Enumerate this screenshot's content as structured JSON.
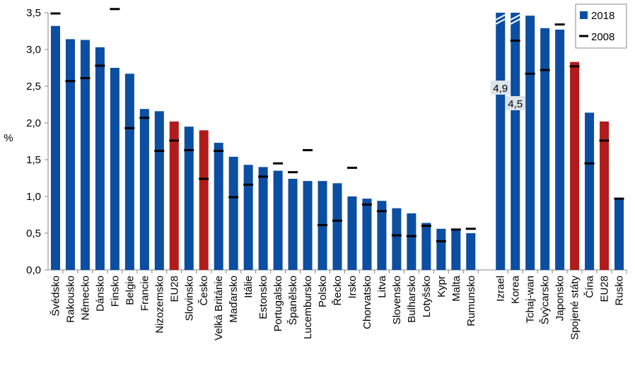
{
  "chart_data": {
    "type": "bar",
    "y_label": "%",
    "categories": [
      "Švédsko",
      "Rakousko",
      "Německo",
      "Dánsko",
      "Finsko",
      "Belgie",
      "Francie",
      "Nizozemsko",
      "EU28",
      "Slovinsko",
      "Česko",
      "Velká Británie",
      "Maďarsko",
      "Itálie",
      "Estonsko",
      "Portugalsko",
      "Španělsko",
      "Lucembursko",
      "Polsko",
      "Řecko",
      "Irsko",
      "Chorvatsko",
      "Litva",
      "Slovensko",
      "Bulharsko",
      "Lotyšsko",
      "Kypr",
      "Malta",
      "Rumunsko",
      null,
      "Izrael",
      "Korea",
      "Tchaj-wan",
      "Švýcarsko",
      "Japonsko",
      "Spojené státy",
      "Čína",
      "EU28",
      "Rusko"
    ],
    "series": [
      {
        "name": "2018",
        "color": "#0b4ea2",
        "colors": [
          "#0b4ea2",
          "#0b4ea2",
          "#0b4ea2",
          "#0b4ea2",
          "#0b4ea2",
          "#0b4ea2",
          "#0b4ea2",
          "#0b4ea2",
          "#b01c1c",
          "#0b4ea2",
          "#b01c1c",
          "#0b4ea2",
          "#0b4ea2",
          "#0b4ea2",
          "#0b4ea2",
          "#0b4ea2",
          "#0b4ea2",
          "#0b4ea2",
          "#0b4ea2",
          "#0b4ea2",
          "#0b4ea2",
          "#0b4ea2",
          "#0b4ea2",
          "#0b4ea2",
          "#0b4ea2",
          "#0b4ea2",
          "#0b4ea2",
          "#0b4ea2",
          "#0b4ea2",
          null,
          "#0b4ea2",
          "#0b4ea2",
          "#0b4ea2",
          "#0b4ea2",
          "#0b4ea2",
          "#b01c1c",
          "#0b4ea2",
          "#b01c1c",
          "#0b4ea2"
        ],
        "values": [
          3.32,
          3.14,
          3.13,
          3.03,
          2.75,
          2.67,
          2.19,
          2.16,
          2.02,
          1.95,
          1.9,
          1.73,
          1.54,
          1.43,
          1.4,
          1.35,
          1.24,
          1.21,
          1.21,
          1.18,
          1.0,
          0.97,
          0.94,
          0.84,
          0.77,
          0.64,
          0.56,
          0.55,
          0.5,
          null,
          4.9,
          4.5,
          3.46,
          3.29,
          3.27,
          2.83,
          2.14,
          2.02,
          0.98
        ],
        "value_labels": [
          null,
          null,
          null,
          null,
          null,
          null,
          null,
          null,
          null,
          null,
          null,
          null,
          null,
          null,
          null,
          null,
          null,
          null,
          null,
          null,
          null,
          null,
          null,
          null,
          null,
          null,
          null,
          null,
          null,
          null,
          "4,9",
          "4,5",
          null,
          null,
          null,
          null,
          null,
          null,
          null
        ]
      },
      {
        "name": "2008",
        "color": "#000000",
        "values": [
          3.49,
          2.57,
          2.61,
          2.78,
          3.55,
          1.93,
          2.07,
          1.62,
          1.76,
          1.63,
          1.24,
          1.62,
          0.99,
          1.16,
          1.27,
          1.45,
          1.33,
          1.63,
          0.61,
          0.67,
          1.39,
          0.89,
          0.8,
          0.47,
          0.46,
          0.6,
          0.39,
          0.55,
          0.56,
          null,
          null,
          3.12,
          2.67,
          2.72,
          3.34,
          2.77,
          1.45,
          1.76,
          0.97
        ]
      }
    ],
    "ylim": [
      0,
      3.5
    ],
    "yticks": [
      {
        "value": 0,
        "label": "0,0"
      },
      {
        "value": 0.5,
        "label": "0,5"
      },
      {
        "value": 1,
        "label": "1,0"
      },
      {
        "value": 1.5,
        "label": "1,5"
      },
      {
        "value": 2,
        "label": "2,0"
      },
      {
        "value": 2.5,
        "label": "2,5"
      },
      {
        "value": 3,
        "label": "3,0"
      },
      {
        "value": 3.5,
        "label": "3,5"
      }
    ],
    "legend": "top-right"
  }
}
